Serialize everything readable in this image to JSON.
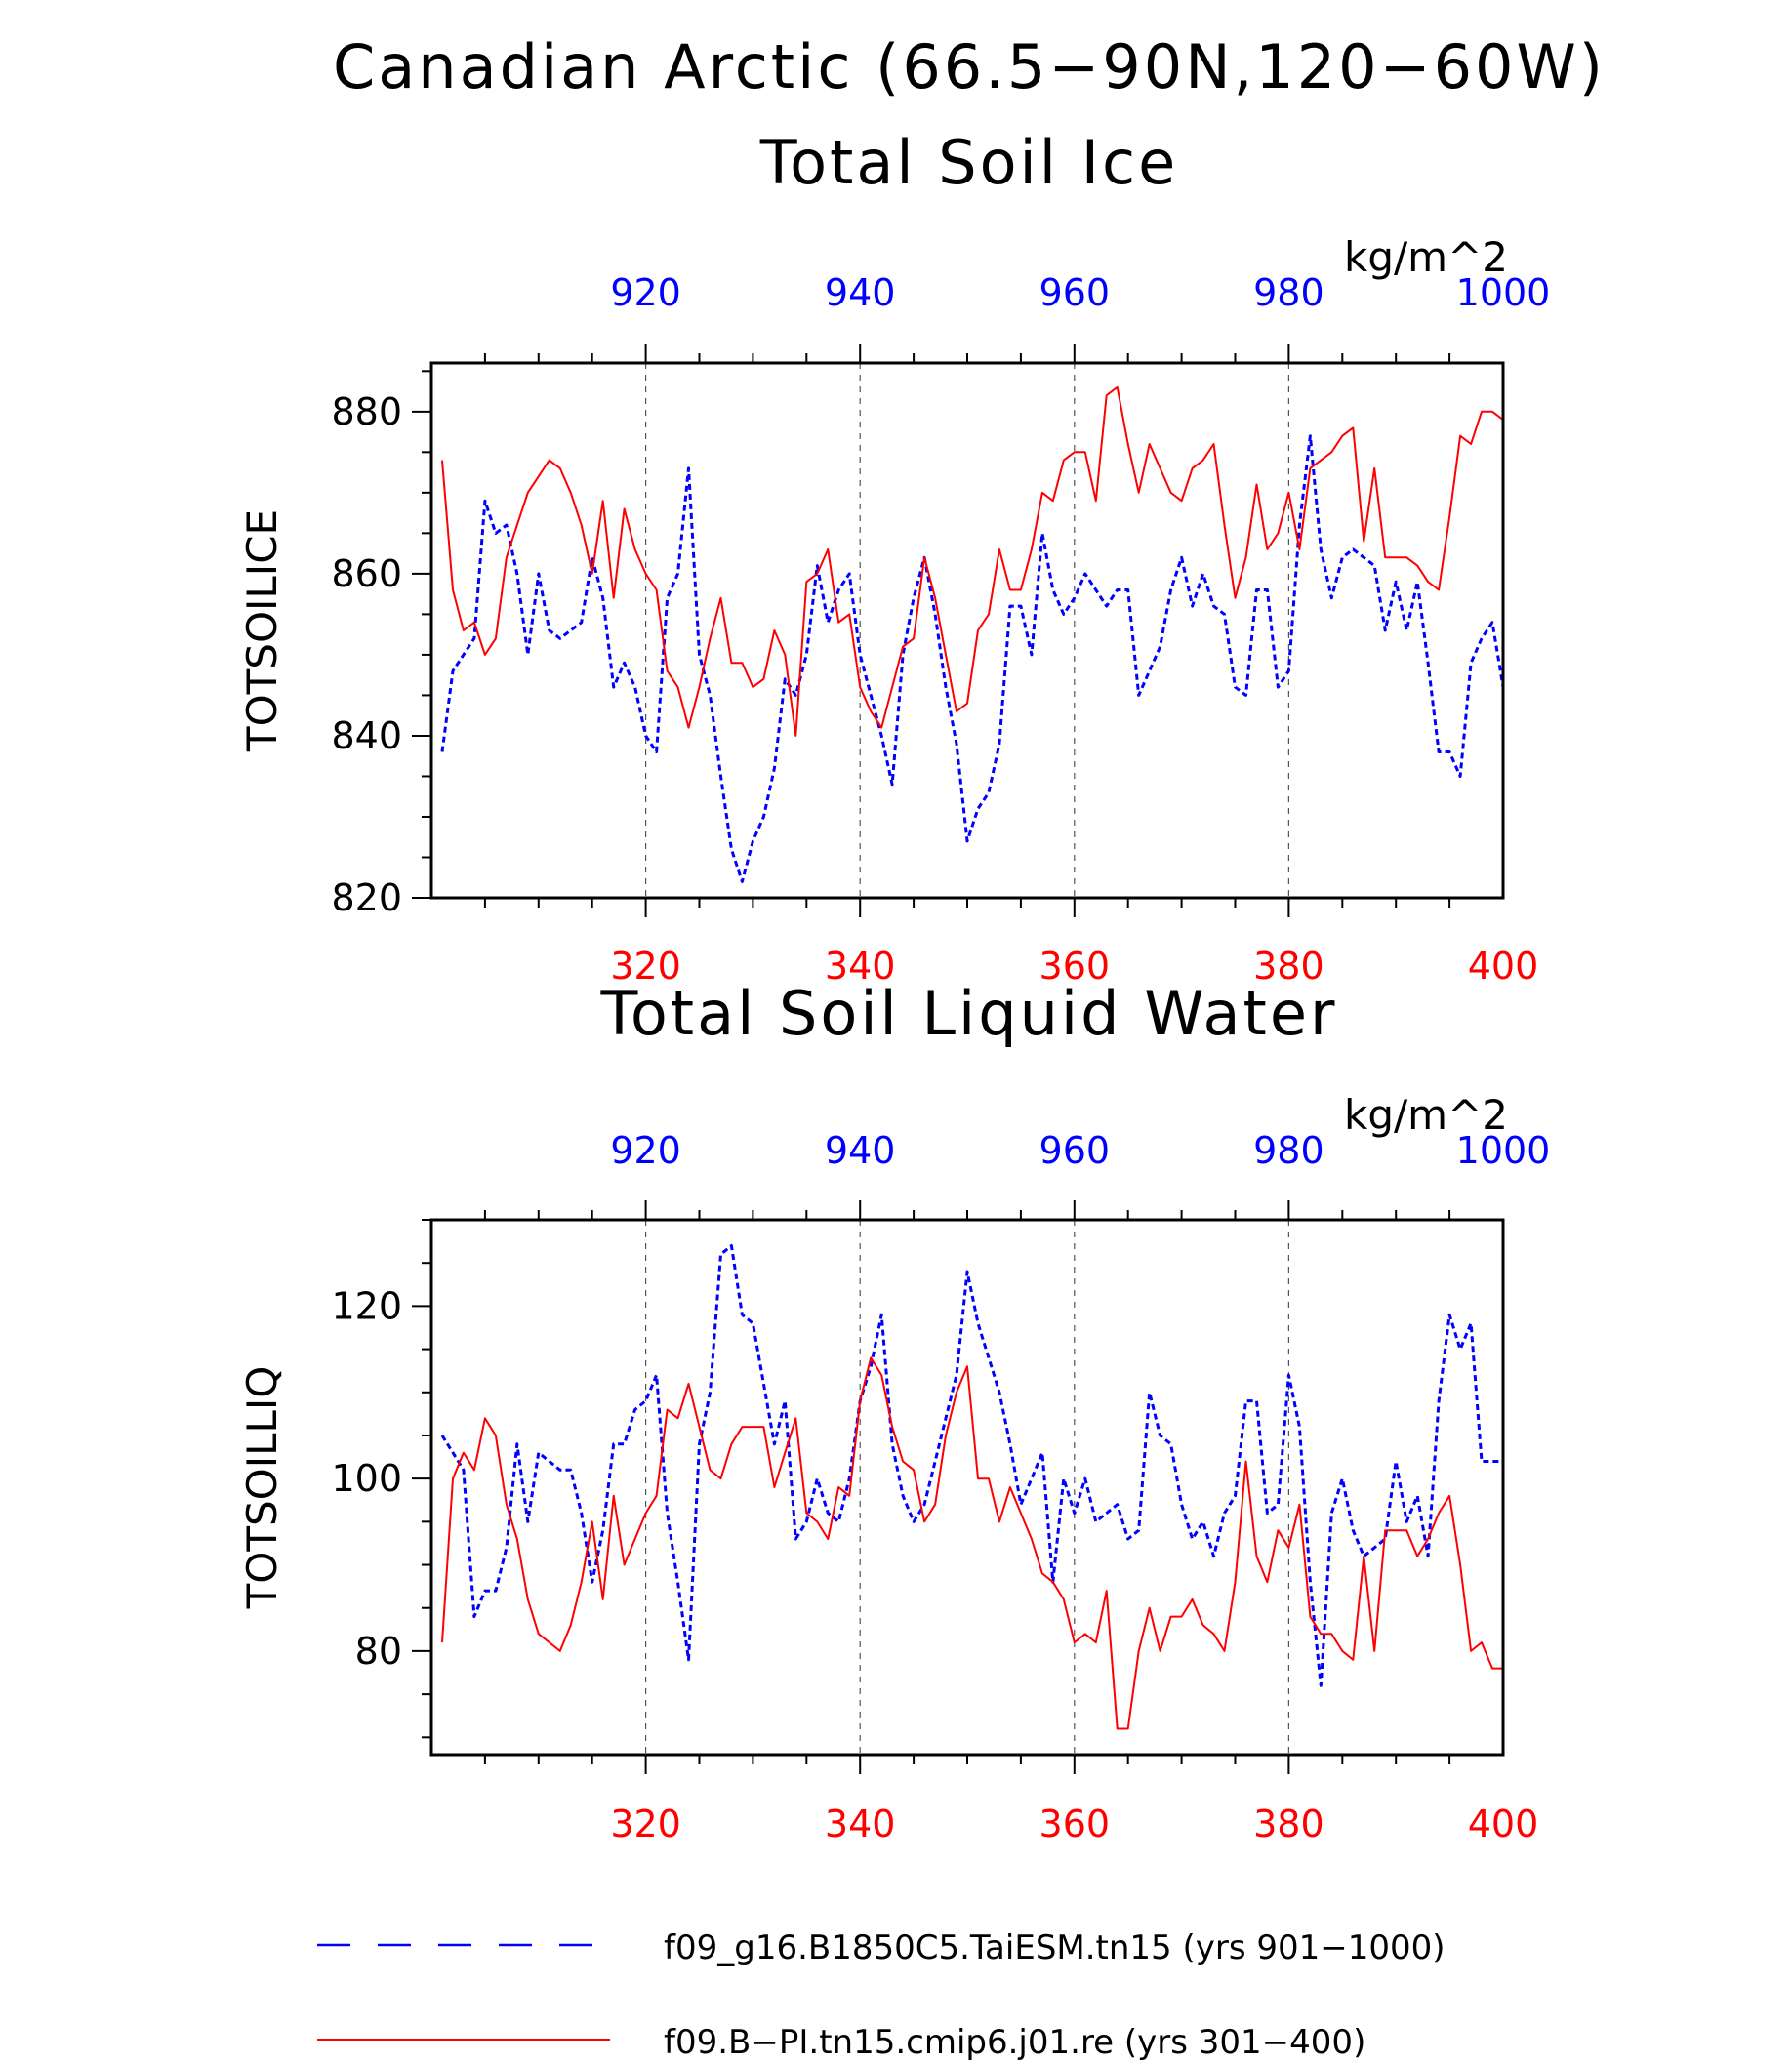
{
  "title_lines": [
    "Canadian Arctic (66.5−90N,120−60W)"
  ],
  "colors": {
    "series_a": "#0000ff",
    "series_b": "#ff0000",
    "axis": "#000000",
    "grid": "#555555"
  },
  "chart_data": [
    {
      "type": "line",
      "title": "Total Soil Ice",
      "ylabel": "TOTSOILICE",
      "units": "kg/m^2",
      "ylim": [
        820,
        886
      ],
      "yticks": [
        820,
        840,
        860,
        880
      ],
      "bottom_axis": {
        "lim": [
          300,
          400
        ],
        "ticks": [
          320,
          340,
          360,
          380,
          400
        ],
        "color": "red"
      },
      "top_axis": {
        "lim": [
          900,
          1000
        ],
        "ticks": [
          920,
          940,
          960,
          980,
          1000
        ],
        "color": "blue"
      },
      "grid_x": [
        320,
        340,
        360,
        380
      ],
      "series": [
        {
          "name": "f09_g16.B1850C5.TaiESM.tn15 (yrs 901−1000)",
          "axis": "top",
          "style": "dashed",
          "color": "blue",
          "x_start": 901,
          "values": [
            838,
            848,
            850,
            852,
            869,
            865,
            866,
            860,
            850,
            860,
            853,
            852,
            853,
            854,
            862,
            857,
            846,
            849,
            846,
            840,
            838,
            857,
            860,
            873,
            850,
            845,
            835,
            826,
            822,
            827,
            830,
            836,
            847,
            845,
            850,
            861,
            854,
            858,
            860,
            850,
            845,
            840,
            834,
            850,
            857,
            862,
            855,
            846,
            839,
            827,
            831,
            833,
            839,
            856,
            856,
            850,
            865,
            858,
            855,
            857,
            860,
            858,
            856,
            858,
            858,
            845,
            848,
            851,
            858,
            862,
            856,
            860,
            856,
            855,
            846,
            845,
            858,
            858,
            846,
            848,
            866,
            877,
            863,
            857,
            862,
            863,
            862,
            861,
            853,
            859,
            853,
            859,
            849,
            838,
            838,
            835,
            849,
            852,
            854,
            846
          ]
        },
        {
          "name": "f09.B−PI.tn15.cmip6.j01.re (yrs 301−400)",
          "axis": "bottom",
          "style": "solid",
          "color": "red",
          "x_start": 301,
          "values": [
            874,
            858,
            853,
            854,
            850,
            852,
            862,
            866,
            870,
            872,
            874,
            873,
            870,
            866,
            860,
            869,
            857,
            868,
            863,
            860,
            858,
            848,
            846,
            841,
            846,
            852,
            857,
            849,
            849,
            846,
            847,
            853,
            850,
            840,
            859,
            860,
            863,
            854,
            855,
            846,
            843,
            841,
            846,
            851,
            852,
            862,
            857,
            850,
            843,
            844,
            853,
            855,
            863,
            858,
            858,
            863,
            870,
            869,
            874,
            875,
            875,
            869,
            882,
            883,
            876,
            870,
            876,
            873,
            870,
            869,
            873,
            874,
            876,
            866,
            857,
            862,
            871,
            863,
            865,
            870,
            863,
            873,
            874,
            875,
            877,
            878,
            864,
            873,
            862,
            862,
            862,
            861,
            859,
            858,
            867,
            877,
            876,
            880,
            880,
            879
          ]
        }
      ]
    },
    {
      "type": "line",
      "title": "Total Soil Liquid Water",
      "ylabel": "TOTSOILLIQ",
      "units": "kg/m^2",
      "ylim": [
        68,
        130
      ],
      "yticks": [
        80,
        100,
        120
      ],
      "bottom_axis": {
        "lim": [
          300,
          400
        ],
        "ticks": [
          320,
          340,
          360,
          380,
          400
        ],
        "color": "red"
      },
      "top_axis": {
        "lim": [
          900,
          1000
        ],
        "ticks": [
          920,
          940,
          960,
          980,
          1000
        ],
        "color": "blue"
      },
      "grid_x": [
        320,
        340,
        360,
        380
      ],
      "series": [
        {
          "name": "f09_g16.B1850C5.TaiESM.tn15 (yrs 901−1000)",
          "axis": "top",
          "style": "dashed",
          "color": "blue",
          "x_start": 901,
          "values": [
            105,
            103,
            101,
            84,
            87,
            87,
            92,
            104,
            95,
            103,
            102,
            101,
            101,
            96,
            88,
            94,
            104,
            104,
            108,
            109,
            112,
            96,
            88,
            79,
            104,
            110,
            126,
            127,
            119,
            118,
            111,
            104,
            109,
            93,
            95,
            100,
            96,
            95,
            100,
            109,
            113,
            119,
            104,
            98,
            95,
            97,
            102,
            107,
            112,
            124,
            118,
            114,
            110,
            104,
            97,
            100,
            103,
            88,
            100,
            96,
            100,
            95,
            96,
            97,
            93,
            94,
            110,
            105,
            104,
            97,
            93,
            95,
            91,
            96,
            98,
            109,
            109,
            96,
            97,
            112,
            106,
            88,
            76,
            96,
            100,
            94,
            91,
            92,
            93,
            102,
            95,
            98,
            91,
            109,
            119,
            115,
            118,
            102,
            102,
            102
          ]
        },
        {
          "name": "f09.B−PI.tn15.cmip6.j01.re (yrs 301−400)",
          "axis": "bottom",
          "style": "solid",
          "color": "red",
          "x_start": 301,
          "values": [
            81,
            100,
            103,
            101,
            107,
            105,
            97,
            93,
            86,
            82,
            81,
            80,
            83,
            88,
            95,
            86,
            98,
            90,
            93,
            96,
            98,
            108,
            107,
            111,
            106,
            101,
            100,
            104,
            106,
            106,
            106,
            99,
            103,
            107,
            96,
            95,
            93,
            99,
            98,
            109,
            114,
            112,
            106,
            102,
            101,
            95,
            97,
            105,
            110,
            113,
            100,
            100,
            95,
            99,
            96,
            93,
            89,
            88,
            86,
            81,
            82,
            81,
            87,
            71,
            71,
            80,
            85,
            80,
            84,
            84,
            86,
            83,
            82,
            80,
            88,
            102,
            91,
            88,
            94,
            92,
            97,
            84,
            82,
            82,
            80,
            79,
            91,
            80,
            94,
            94,
            94,
            91,
            93,
            96,
            98,
            90,
            80,
            81,
            78,
            78
          ]
        }
      ]
    }
  ],
  "legend": {
    "entries": [
      {
        "label": "f09_g16.B1850C5.TaiESM.tn15 (yrs 901−1000)",
        "style": "dashed",
        "color": "blue"
      },
      {
        "label": "f09.B−PI.tn15.cmip6.j01.re (yrs 301−400)",
        "style": "solid",
        "color": "red"
      }
    ]
  }
}
